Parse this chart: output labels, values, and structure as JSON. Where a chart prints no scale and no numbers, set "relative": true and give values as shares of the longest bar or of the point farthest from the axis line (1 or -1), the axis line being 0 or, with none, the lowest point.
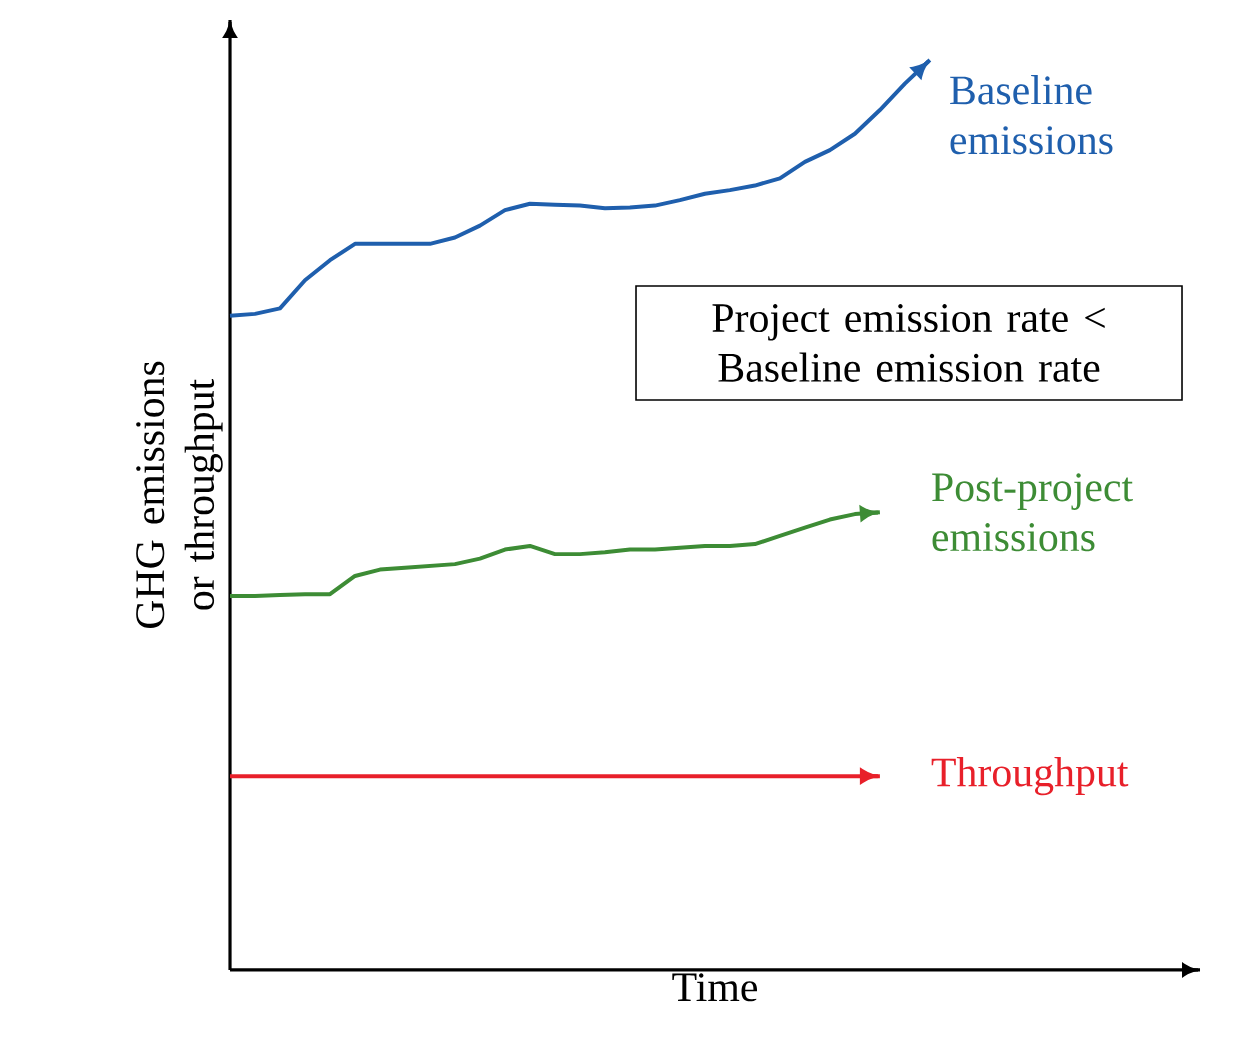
{
  "chart_data": {
    "type": "line",
    "relative": true,
    "xlabel": "Time",
    "ylabel": "GHG emissions or throughput",
    "legend": "right",
    "annotations": [
      "Project emission rate < Baseline emission rate"
    ],
    "categories": [
      null,
      null,
      null,
      null,
      null,
      null,
      null,
      null,
      null,
      null,
      null,
      null,
      null,
      null,
      null,
      null,
      null,
      null,
      null,
      null,
      null,
      null,
      null,
      null,
      null,
      null,
      null,
      null,
      null
    ],
    "series": [
      {
        "name": "Baseline emissions",
        "color": "#1f5fad",
        "values": [
          0.719,
          0.721,
          0.727,
          0.758,
          0.78,
          0.798,
          0.798,
          0.798,
          0.798,
          0.805,
          0.818,
          0.835,
          0.842,
          0.841,
          0.84,
          0.837,
          0.838,
          0.84,
          0.846,
          0.853,
          0.857,
          0.862,
          0.87,
          0.888,
          0.901,
          0.919,
          0.945,
          0.974,
          1.0
        ]
      },
      {
        "name": "Post-project emissions",
        "color": "#3d8c35",
        "values": [
          0.411,
          0.411,
          0.412,
          0.413,
          0.413,
          0.433,
          0.44,
          0.442,
          0.444,
          0.446,
          0.452,
          0.462,
          0.466,
          0.457,
          0.457,
          0.459,
          0.462,
          0.462,
          0.464,
          0.466,
          0.466,
          0.468,
          0.477,
          0.486,
          0.495,
          0.501,
          0.503,
          null,
          null
        ]
      },
      {
        "name": "Throughput",
        "color": "#e8202a",
        "values": [
          0.213,
          0.213,
          0.213,
          0.213,
          0.213,
          0.213,
          0.213,
          0.213,
          0.213,
          0.213,
          0.213,
          0.213,
          0.213,
          0.213,
          0.213,
          0.213,
          0.213,
          0.213,
          0.213,
          0.213,
          0.213,
          0.213,
          0.213,
          0.213,
          0.213,
          0.213,
          0.213,
          null,
          null
        ]
      }
    ]
  }
}
